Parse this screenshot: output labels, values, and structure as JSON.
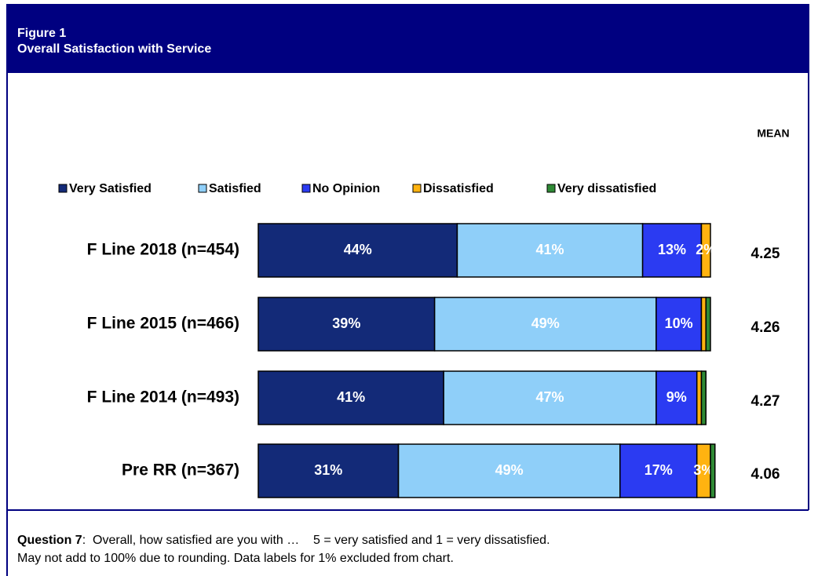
{
  "figure": {
    "label": "Figure 1",
    "title": "Overall Satisfaction with Service"
  },
  "chart_data": {
    "type": "stacked-bar-horizontal",
    "categories": [
      "F Line 2018 (n=454)",
      "F Line 2015 (n=466)",
      "F Line 2014 (n=493)",
      "Pre RR (n=367)"
    ],
    "series": [
      {
        "name": "Very Satisfied",
        "color": "#132a78",
        "values": [
          44,
          39,
          41,
          31
        ],
        "value_labels": [
          "44%",
          "39%",
          "41%",
          "31%"
        ]
      },
      {
        "name": "Satisfied",
        "color": "#8fcff9",
        "values": [
          41,
          49,
          47,
          49
        ],
        "value_labels": [
          "41%",
          "49%",
          "47%",
          "49%"
        ]
      },
      {
        "name": "No Opinion",
        "color": "#2b3bf2",
        "values": [
          13,
          10,
          9,
          17
        ],
        "value_labels": [
          "13%",
          "10%",
          "9%",
          "17%"
        ]
      },
      {
        "name": "Dissatisfied",
        "color": "#ffb310",
        "values": [
          2,
          1,
          1,
          3
        ],
        "value_labels": [
          "2%",
          null,
          null,
          "3%"
        ]
      },
      {
        "name": "Very dissatisfied",
        "color": "#2f8a35",
        "values": [
          0,
          1,
          1,
          1
        ],
        "value_labels": [
          null,
          null,
          null,
          null
        ]
      }
    ],
    "xlim": [
      0,
      100
    ],
    "mean_label": "MEAN",
    "means": [
      4.25,
      4.26,
      4.27,
      4.06
    ],
    "legend": "top"
  },
  "footer": {
    "question_label": "Question 7",
    "question_text": ":  Overall, how satisfied are you with …    5 = very satisfied and 1 = very dissatisfied.",
    "note": "May not add to 100% due to rounding. Data labels for 1% excluded from chart."
  }
}
